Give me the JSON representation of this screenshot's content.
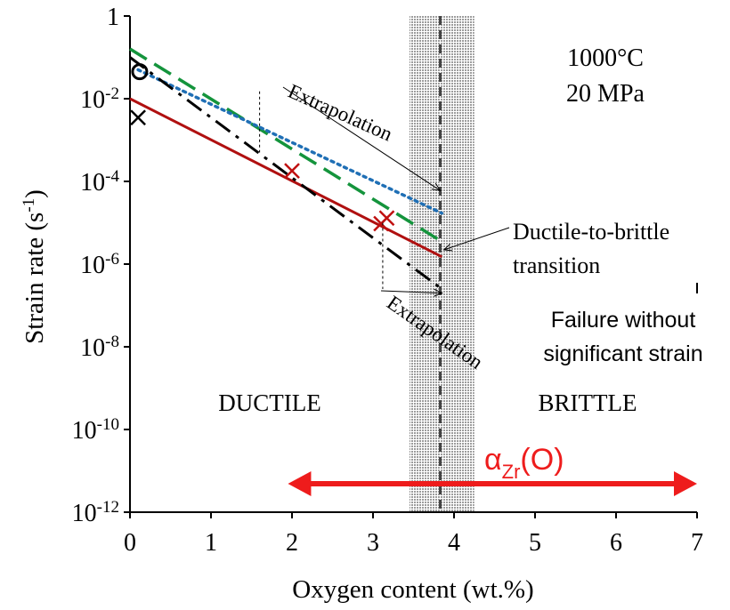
{
  "chart_data": {
    "type": "line",
    "x_axis": {
      "label": "Oxygen content (wt.%)",
      "min": 0,
      "max": 7,
      "ticks": [
        0,
        1,
        2,
        3,
        4,
        5,
        6,
        7
      ]
    },
    "y_axis": {
      "label_main": "Strain rate (s",
      "label_sup": "-1",
      "label_close": ")",
      "scale": "log",
      "min": 1e-12,
      "max": 1,
      "ticks": [
        {
          "value": 1,
          "base": "1",
          "exp": ""
        },
        {
          "value": 0.01,
          "base": "10",
          "exp": "-2"
        },
        {
          "value": 0.0001,
          "base": "10",
          "exp": "-4"
        },
        {
          "value": 1e-06,
          "base": "10",
          "exp": "-6"
        },
        {
          "value": 1e-08,
          "base": "10",
          "exp": "-8"
        },
        {
          "value": 1e-10,
          "base": "10",
          "exp": "-10"
        },
        {
          "value": 1e-12,
          "base": "10",
          "exp": "-12"
        }
      ]
    },
    "transition_band": {
      "x_from": 3.45,
      "x_to": 4.25,
      "x_center": 3.83
    },
    "series": [
      {
        "style": "solid",
        "color": "#b01010",
        "x": [
          0,
          3.85
        ],
        "y": [
          0.01,
          1.5e-06
        ]
      },
      {
        "style": "long-dash",
        "color": "#14943c",
        "x": [
          0,
          3.85
        ],
        "y": [
          0.16,
          3.5e-06
        ]
      },
      {
        "style": "dotted",
        "color": "#1f6fb5",
        "x": [
          0.1,
          3.85
        ],
        "y": [
          0.05,
          1.7e-05
        ]
      },
      {
        "style": "dash-dot",
        "color": "#000000",
        "x": [
          0,
          3.85
        ],
        "y": [
          0.1,
          2.5e-07
        ]
      }
    ],
    "markers": [
      {
        "shape": "circle",
        "color": "#000000",
        "x": 0.12,
        "y": 0.045
      },
      {
        "shape": "cross",
        "color": "#000000",
        "x": 0.1,
        "y": 0.0035
      },
      {
        "shape": "cross",
        "color": "#c01010",
        "x": 2.0,
        "y": 0.00018
      },
      {
        "shape": "cross",
        "color": "#c01010",
        "x": 3.1,
        "y": 9.5e-06
      },
      {
        "shape": "cross",
        "color": "#c01010",
        "x": 3.17,
        "y": 1.3e-05
      }
    ],
    "extrapolation_markers": [
      {
        "x": 1.6,
        "y_top": 0.015,
        "y_bottom": 0.0005
      },
      {
        "x": 3.12,
        "y_top": 1e-05,
        "y_bottom": 2.5e-07
      }
    ],
    "annotations": {
      "condition_temperature": "1000°C",
      "condition_stress": "20 MPa",
      "extrapolation_upper": "Extrapolation",
      "extrapolation_lower": "Extrapolation",
      "transition_line1": "Ductile-to-brittle",
      "transition_line2": "transition",
      "failure_line1": "Failure without",
      "failure_line2": "significant strain",
      "ductile": "DUCTILE",
      "brittle": "BRITTLE",
      "phase_alpha": "α",
      "phase_sub": "Zr",
      "phase_tail": "(O)"
    },
    "phase_range": {
      "x_from": 1.95,
      "x_to": 7.0,
      "y": 5e-12
    }
  }
}
